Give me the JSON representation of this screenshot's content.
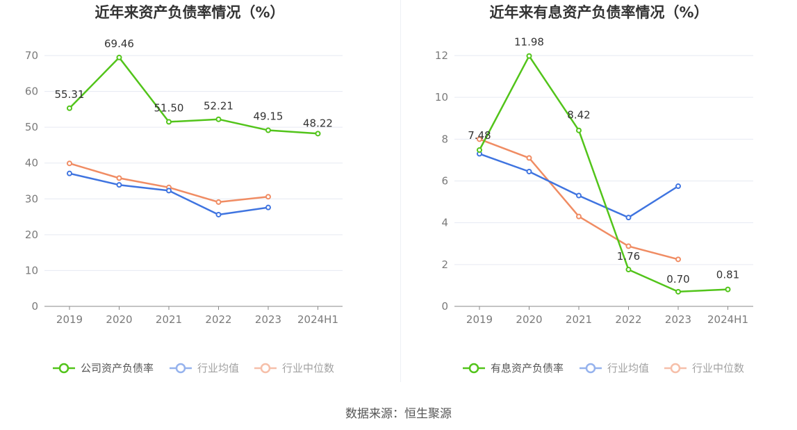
{
  "source_text": "数据来源：恒生聚源",
  "chart_data": [
    {
      "type": "line",
      "title": "近年来资产负债率情况（%）",
      "categories": [
        "2019",
        "2020",
        "2021",
        "2022",
        "2023",
        "2024H1"
      ],
      "ylim": [
        0,
        70
      ],
      "yticks": [
        0,
        10,
        20,
        30,
        40,
        50,
        60,
        70
      ],
      "grid": true,
      "legend_position": "bottom",
      "series": [
        {
          "name": "公司资产负债率",
          "color": "#52c41a",
          "labeled": true,
          "values": [
            55.31,
            69.46,
            51.5,
            52.21,
            49.15,
            48.22
          ],
          "labels": [
            "55.31",
            "69.46",
            "51.50",
            "52.21",
            "49.15",
            "48.22"
          ]
        },
        {
          "name": "行业均值",
          "color": "#3f74e0",
          "labeled": false,
          "values": [
            37.1,
            33.9,
            32.3,
            25.6,
            27.6,
            null
          ]
        },
        {
          "name": "行业中位数",
          "color": "#f08c63",
          "labeled": false,
          "values": [
            39.9,
            35.8,
            33.2,
            29.1,
            30.6,
            null
          ]
        }
      ]
    },
    {
      "type": "line",
      "title": "近年来有息资产负债率情况（%）",
      "categories": [
        "2019",
        "2020",
        "2021",
        "2022",
        "2023",
        "2024H1"
      ],
      "ylim": [
        0,
        12
      ],
      "yticks": [
        0,
        2,
        4,
        6,
        8,
        10,
        12
      ],
      "grid": true,
      "legend_position": "bottom",
      "series": [
        {
          "name": "有息资产负债率",
          "color": "#52c41a",
          "labeled": true,
          "values": [
            7.48,
            11.98,
            8.42,
            1.76,
            0.7,
            0.81
          ],
          "labels": [
            "7.48",
            "11.98",
            "8.42",
            "1.76",
            "0.70",
            "0.81"
          ]
        },
        {
          "name": "行业均值",
          "color": "#3f74e0",
          "labeled": false,
          "values": [
            7.3,
            6.45,
            5.3,
            4.25,
            5.75,
            null
          ]
        },
        {
          "name": "行业中位数",
          "color": "#f08c63",
          "labeled": false,
          "values": [
            8.0,
            7.1,
            4.3,
            2.88,
            2.25,
            null
          ]
        }
      ]
    }
  ]
}
